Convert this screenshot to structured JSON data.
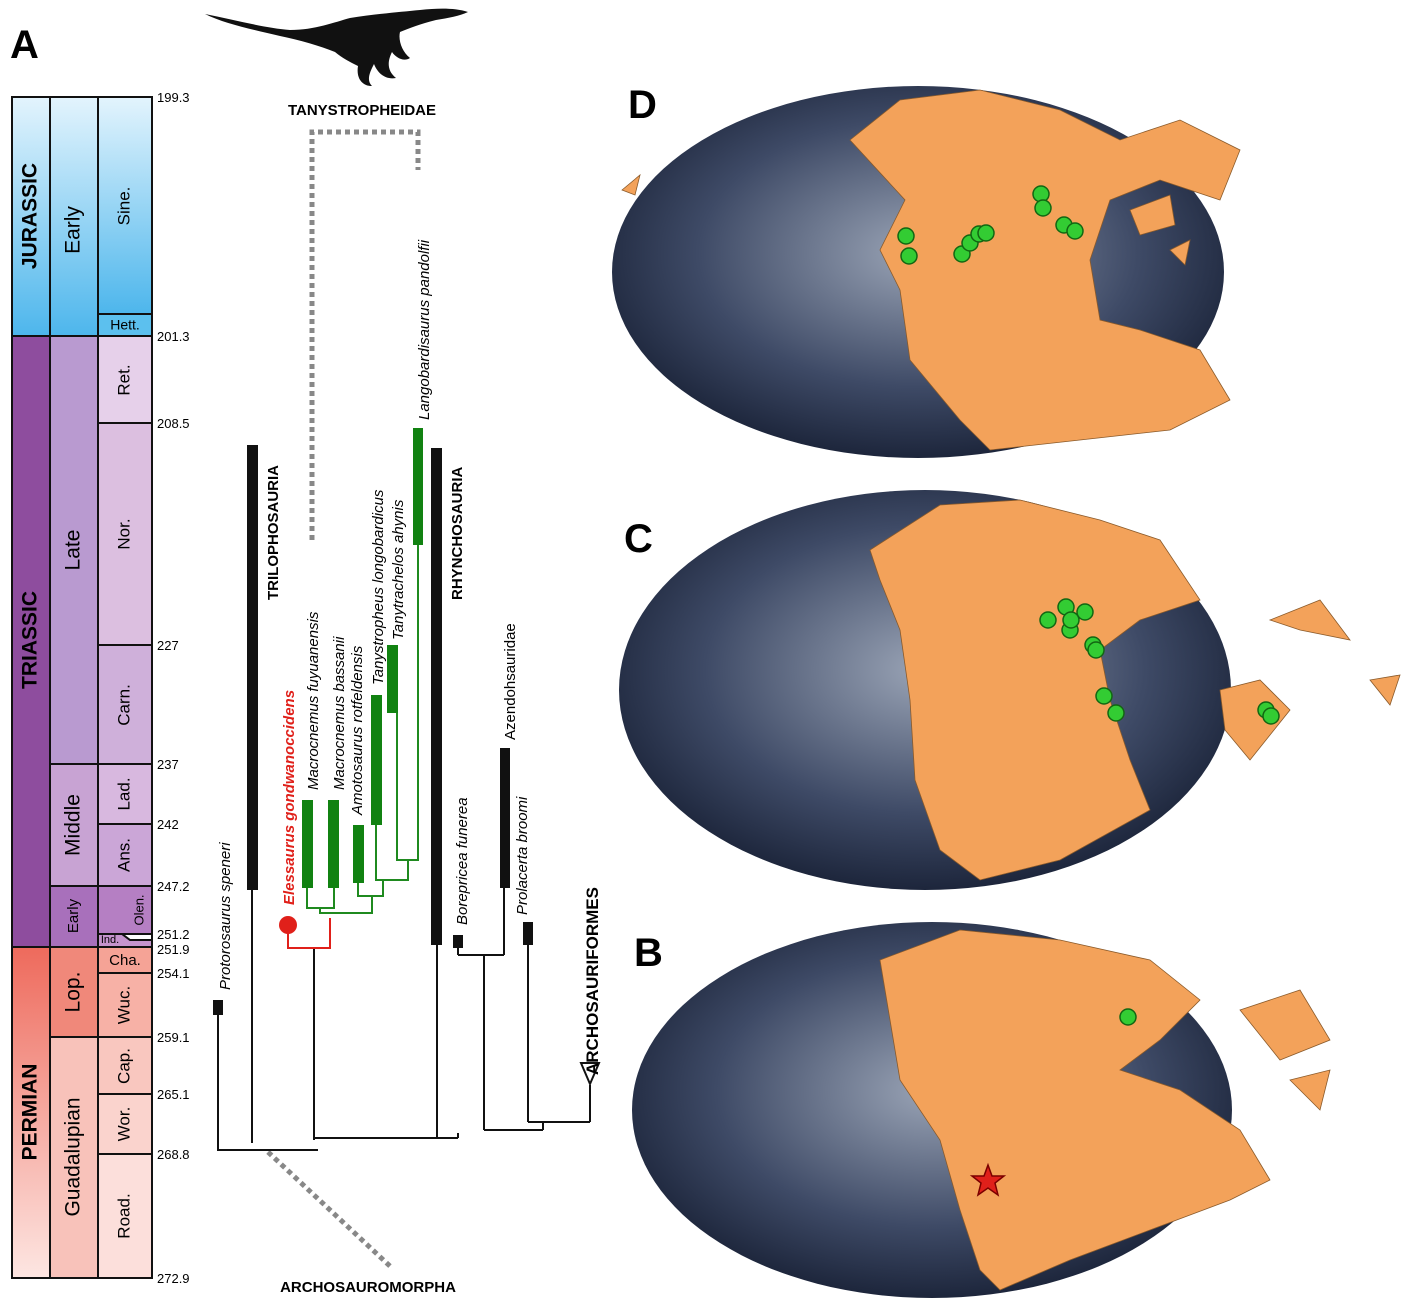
{
  "panel_labels": [
    "A",
    "D",
    "C",
    "B"
  ],
  "timescale": {
    "ages": [
      199.3,
      201.3,
      208.5,
      227,
      237,
      242,
      247.2,
      251.2,
      251.9,
      254.1,
      259.1,
      265.1,
      268.8,
      272.9
    ],
    "periods": [
      "JURASSIC",
      "TRIASSIC",
      "PERMIAN"
    ],
    "epochs": [
      "Early",
      "Late",
      "Middle",
      "Early",
      "Lop.",
      "Guadalupian"
    ],
    "stages": [
      "Sine.",
      "Hett.",
      "Ret.",
      "Nor.",
      "Carn.",
      "Lad.",
      "Ans.",
      "Olen.",
      "Ind.",
      "Cha.",
      "Wuc.",
      "Cap.",
      "Wor.",
      "Road."
    ]
  },
  "tree": {
    "clades": [
      "TANYSTROPHEIDAE",
      "TRILOPHOSAURIA",
      "RHYNCHOSAURIA",
      "ARCHOSAURIFORMES",
      "ARCHOSAUROMORPHA"
    ],
    "taxa": [
      "Protorosaurus speneri",
      "Elessaurus gondwanoccidens",
      "Macrocnemus fuyuanensis",
      "Macrocnemus bassanii",
      "Amotosaurus rotfeldensis",
      "Tanystropheus longobardicus",
      "Tanytrachelos ahynis",
      "Langobardisaurus pandolfii",
      "Azendohsauridae",
      "Borepricea funerea",
      "Prolacerta broomi"
    ]
  }
}
